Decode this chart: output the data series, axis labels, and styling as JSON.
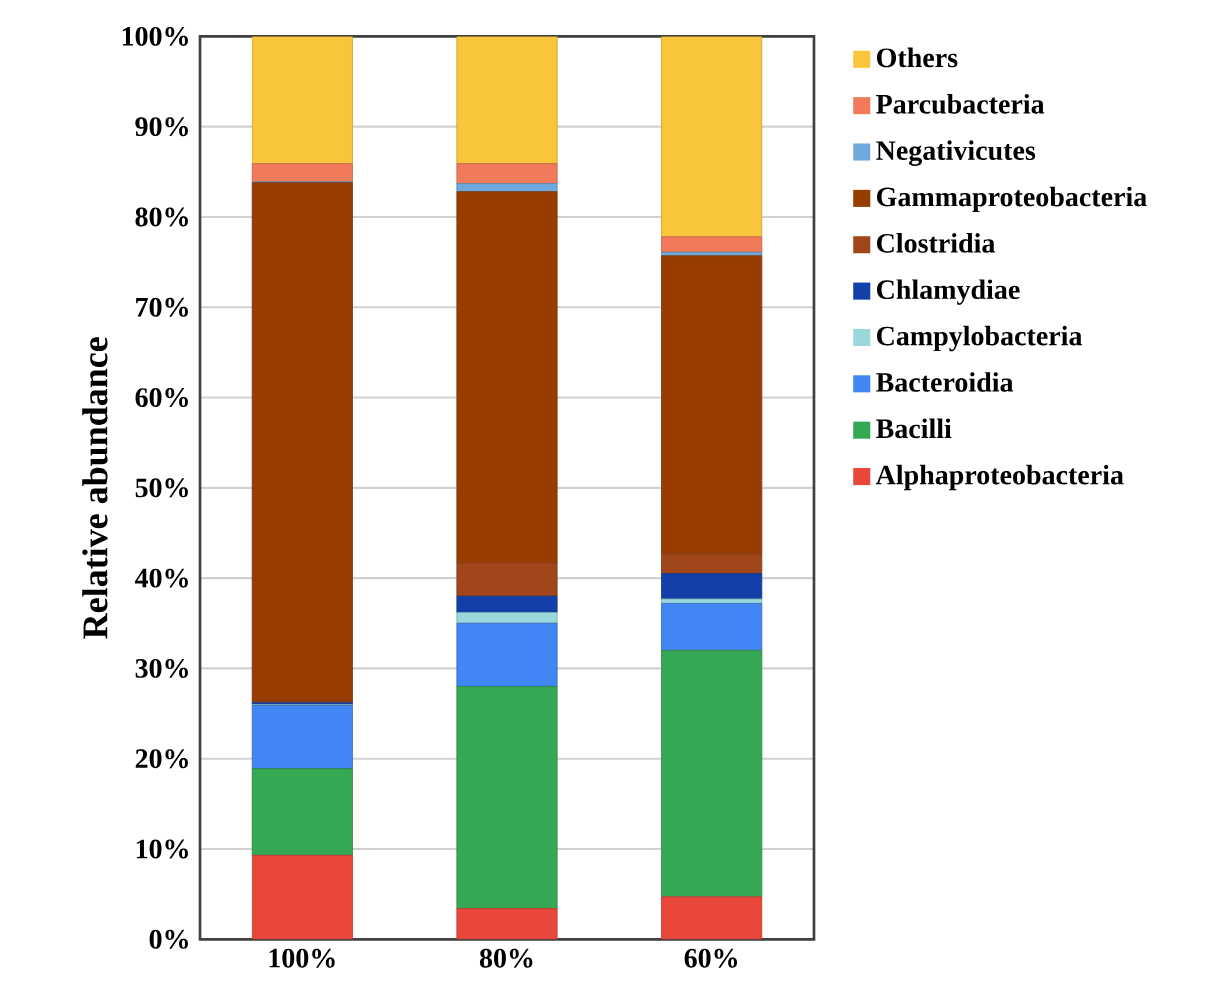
{
  "chart_data": {
    "type": "bar",
    "stacked": true,
    "ylabel": "Relative abundance",
    "categories": [
      "100%",
      "80%",
      "60%"
    ],
    "series": [
      {
        "name": "Alphaproteobacteria",
        "color": "#e8473a",
        "values": [
          9.3,
          3.4,
          4.7
        ]
      },
      {
        "name": "Bacilli",
        "color": "#34a853",
        "values": [
          9.6,
          24.6,
          27.3
        ]
      },
      {
        "name": "Bacteroidia",
        "color": "#4285f4",
        "values": [
          7.0,
          7.0,
          5.2
        ]
      },
      {
        "name": "Campylobacteria",
        "color": "#9ad8dc",
        "values": [
          0.1,
          1.2,
          0.5
        ]
      },
      {
        "name": "Chlamydiae",
        "color": "#1240a8",
        "values": [
          0.2,
          1.8,
          2.8
        ]
      },
      {
        "name": "Clostridia",
        "color": "#a0461a",
        "values": [
          0.2,
          3.7,
          2.2
        ]
      },
      {
        "name": "Gammaproteobacteria",
        "color": "#983d00",
        "values": [
          57.4,
          41.1,
          33.0
        ]
      },
      {
        "name": "Negativicutes",
        "color": "#6fa8dc",
        "values": [
          0.1,
          0.9,
          0.4
        ]
      },
      {
        "name": "Parcubacteria",
        "color": "#f07a5a",
        "values": [
          2.0,
          2.2,
          1.7
        ]
      },
      {
        "name": "Others",
        "color": "#f9c53a",
        "values": [
          14.1,
          14.1,
          22.2
        ]
      }
    ],
    "ylim": [
      0,
      100
    ],
    "yticks": [
      {
        "value": 0,
        "label": "0%"
      },
      {
        "value": 10,
        "label": "10%"
      },
      {
        "value": 20,
        "label": "20%"
      },
      {
        "value": 30,
        "label": "30%"
      },
      {
        "value": 40,
        "label": "40%"
      },
      {
        "value": 50,
        "label": "50%"
      },
      {
        "value": 60,
        "label": "60%"
      },
      {
        "value": 70,
        "label": "70%"
      },
      {
        "value": 80,
        "label": "80%"
      },
      {
        "value": 90,
        "label": "90%"
      },
      {
        "value": 100,
        "label": "100%"
      }
    ],
    "grid": "y",
    "legend": "right"
  }
}
